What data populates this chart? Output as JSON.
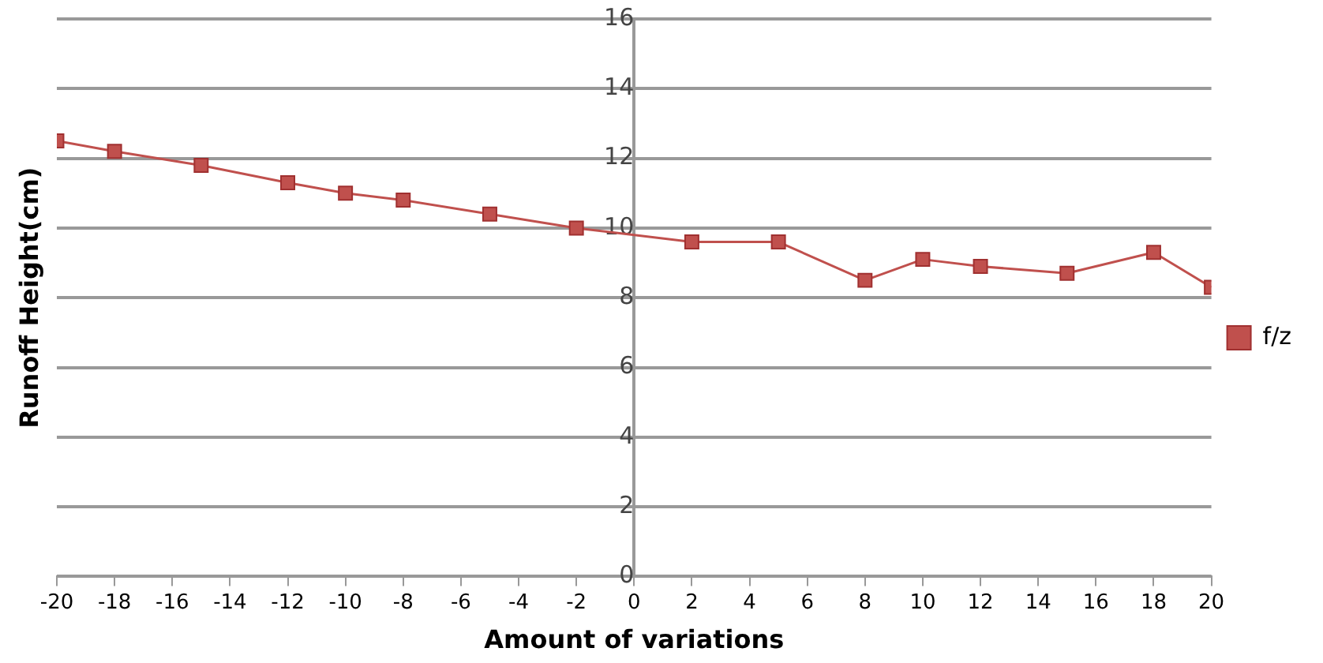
{
  "chart_data": {
    "type": "line",
    "xlabel": "Amount of variations",
    "ylabel": "Runoff Height(cm)",
    "x": [
      -20,
      -18,
      -15,
      -12,
      -10,
      -8,
      -5,
      -2,
      2,
      5,
      8,
      10,
      12,
      15,
      18,
      20
    ],
    "series": [
      {
        "name": "f/z",
        "color": "#c0504d",
        "values": [
          12.5,
          12.2,
          11.8,
          11.3,
          11.0,
          10.8,
          10.4,
          10.0,
          9.6,
          9.6,
          8.5,
          9.1,
          8.9,
          8.7,
          9.3,
          8.3
        ]
      }
    ],
    "xlim": [
      -20,
      20
    ],
    "xticks": [
      -20,
      -18,
      -16,
      -14,
      -12,
      -10,
      -8,
      -6,
      -4,
      -2,
      0,
      2,
      4,
      6,
      8,
      10,
      12,
      14,
      16,
      18,
      20
    ],
    "ylim": [
      0,
      16
    ],
    "yticks": [
      0,
      2,
      4,
      6,
      8,
      10,
      12,
      14,
      16
    ],
    "grid": "y",
    "legend": "right",
    "marker": "square",
    "line_style": "solid"
  }
}
